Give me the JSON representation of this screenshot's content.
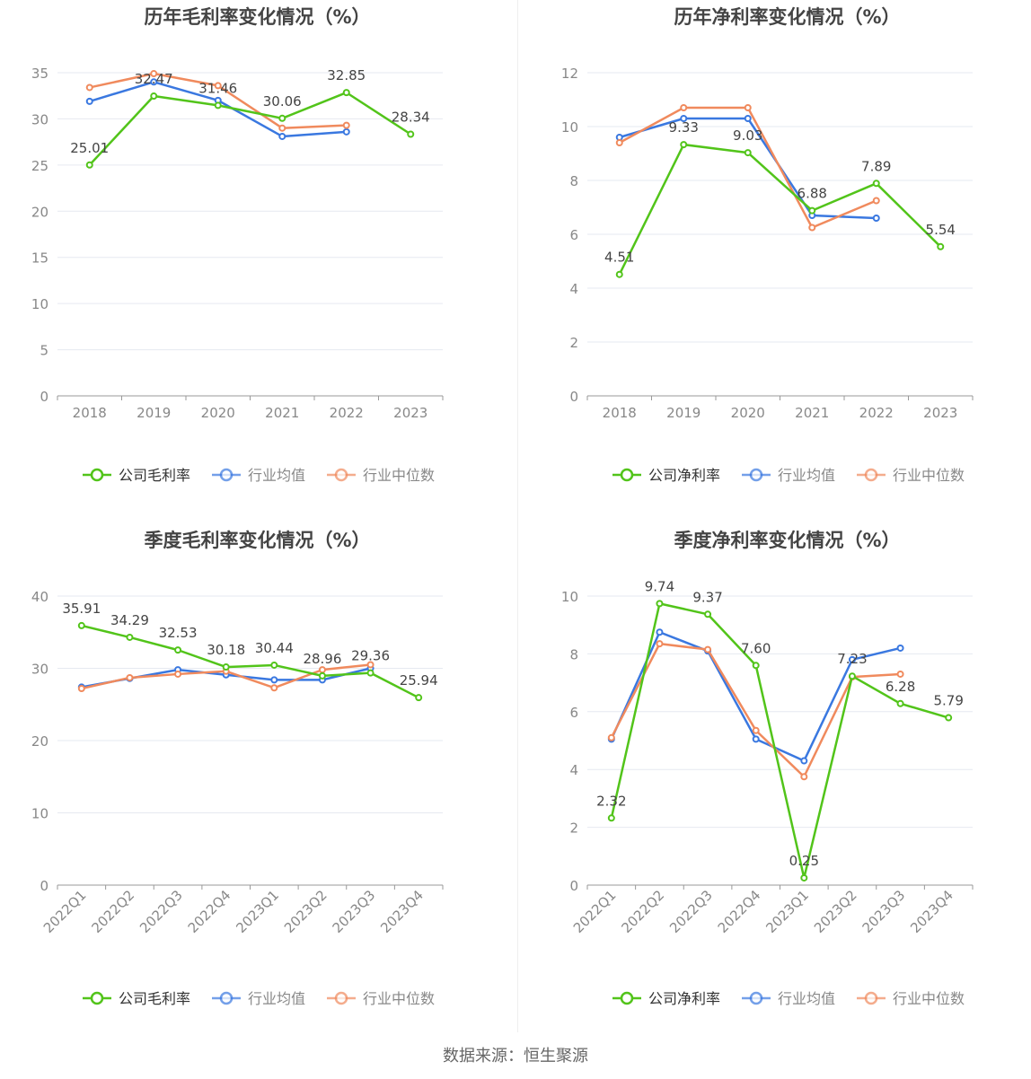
{
  "source": "数据来源：恒生聚源",
  "colors": {
    "company": "#52c41a",
    "avg": "#3a78e0",
    "median": "#f08a5d"
  },
  "chart_data": [
    {
      "type": "line",
      "title": "历年毛利率变化情况（%）",
      "x": [
        "2018",
        "2019",
        "2020",
        "2021",
        "2022",
        "2023"
      ],
      "ylim": [
        0,
        35
      ],
      "yticks": [
        0,
        5,
        10,
        15,
        20,
        25,
        30,
        35
      ],
      "grid": true,
      "legend_position": "bottom",
      "series": [
        {
          "name": "公司毛利率",
          "key": "company",
          "values": [
            25.01,
            32.47,
            31.46,
            30.06,
            32.85,
            28.34
          ],
          "labels": [
            "25.01",
            "32.47",
            "31.46",
            "30.06",
            "32.85",
            "28.34"
          ]
        },
        {
          "name": "行业均值",
          "key": "avg",
          "values": [
            31.9,
            34.0,
            32.0,
            28.1,
            28.6,
            null
          ]
        },
        {
          "name": "行业中位数",
          "key": "median",
          "values": [
            33.4,
            34.9,
            33.6,
            29.0,
            29.3,
            null
          ]
        }
      ]
    },
    {
      "type": "line",
      "title": "历年净利率变化情况（%）",
      "x": [
        "2018",
        "2019",
        "2020",
        "2021",
        "2022",
        "2023"
      ],
      "ylim": [
        0,
        12
      ],
      "yticks": [
        0,
        2,
        4,
        6,
        8,
        10,
        12
      ],
      "grid": true,
      "legend_position": "bottom",
      "series": [
        {
          "name": "公司净利率",
          "key": "company",
          "values": [
            4.51,
            9.33,
            9.03,
            6.88,
            7.89,
            5.54
          ],
          "labels": [
            "4.51",
            "9.33",
            "9.03",
            "6.88",
            "7.89",
            "5.54"
          ]
        },
        {
          "name": "行业均值",
          "key": "avg",
          "values": [
            9.6,
            10.3,
            10.3,
            6.7,
            6.6,
            null
          ]
        },
        {
          "name": "行业中位数",
          "key": "median",
          "values": [
            9.4,
            10.7,
            10.7,
            6.25,
            7.25,
            null
          ]
        }
      ]
    },
    {
      "type": "line",
      "title": "季度毛利率变化情况（%）",
      "x": [
        "2022Q1",
        "2022Q2",
        "2022Q3",
        "2022Q4",
        "2023Q1",
        "2023Q2",
        "2023Q3",
        "2023Q4"
      ],
      "ylim": [
        0,
        40
      ],
      "yticks": [
        0,
        10,
        20,
        30,
        40
      ],
      "grid": true,
      "legend_position": "bottom",
      "series": [
        {
          "name": "公司毛利率",
          "key": "company",
          "values": [
            35.91,
            34.29,
            32.53,
            30.18,
            30.44,
            28.96,
            29.36,
            25.94
          ],
          "labels": [
            "35.91",
            "34.29",
            "32.53",
            "30.18",
            "30.44",
            "28.96",
            "29.36",
            "25.94"
          ]
        },
        {
          "name": "行业均值",
          "key": "avg",
          "values": [
            27.4,
            28.6,
            29.8,
            29.1,
            28.4,
            28.4,
            30.0,
            null
          ]
        },
        {
          "name": "行业中位数",
          "key": "median",
          "values": [
            27.2,
            28.7,
            29.2,
            29.6,
            27.3,
            29.8,
            30.5,
            null
          ]
        }
      ]
    },
    {
      "type": "line",
      "title": "季度净利率变化情况（%）",
      "x": [
        "2022Q1",
        "2022Q2",
        "2022Q3",
        "2022Q4",
        "2023Q1",
        "2023Q2",
        "2023Q3",
        "2023Q4"
      ],
      "ylim": [
        0,
        10
      ],
      "yticks": [
        0,
        2,
        4,
        6,
        8,
        10
      ],
      "grid": true,
      "legend_position": "bottom",
      "series": [
        {
          "name": "公司净利率",
          "key": "company",
          "values": [
            2.32,
            9.74,
            9.37,
            7.6,
            0.25,
            7.23,
            6.28,
            5.79
          ],
          "labels": [
            "2.32",
            "9.74",
            "9.37",
            "7.60",
            "0.25",
            "7.23",
            "6.28",
            "5.79"
          ]
        },
        {
          "name": "行业均值",
          "key": "avg",
          "values": [
            5.05,
            8.75,
            8.1,
            5.05,
            4.3,
            7.8,
            8.2,
            null
          ]
        },
        {
          "name": "行业中位数",
          "key": "median",
          "values": [
            5.1,
            8.35,
            8.15,
            5.35,
            3.75,
            7.2,
            7.3,
            null
          ]
        }
      ]
    }
  ]
}
